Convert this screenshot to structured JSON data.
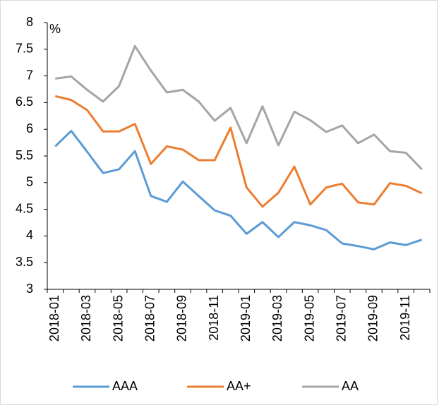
{
  "chart_data": {
    "type": "line",
    "y_label": "%",
    "categories": [
      "2018-01",
      null,
      "2018-03",
      null,
      "2018-05",
      null,
      "2018-07",
      null,
      "2018-09",
      null,
      "2018-11",
      null,
      "2019-01",
      null,
      "2019-03",
      null,
      "2019-05",
      null,
      "2019-07",
      null,
      "2019-09",
      null,
      "2019-11",
      null
    ],
    "series": [
      {
        "name": "AAA",
        "color": "#5b9bd5",
        "values": [
          5.68,
          5.97,
          5.58,
          5.18,
          5.25,
          5.59,
          4.75,
          4.64,
          5.02,
          4.75,
          4.48,
          4.38,
          4.04,
          4.26,
          3.98,
          4.26,
          4.2,
          4.11,
          3.86,
          3.81,
          3.75,
          3.88,
          3.83,
          3.93
        ]
      },
      {
        "name": "AA+",
        "color": "#ed7d31",
        "values": [
          6.62,
          6.55,
          6.36,
          5.96,
          5.96,
          6.1,
          5.35,
          5.68,
          5.62,
          5.42,
          5.42,
          6.03,
          4.91,
          4.55,
          4.81,
          5.3,
          4.59,
          4.91,
          4.98,
          4.63,
          4.59,
          4.99,
          4.94,
          4.8
        ]
      },
      {
        "name": "AA",
        "color": "#a5a5a5",
        "values": [
          6.95,
          6.99,
          6.74,
          6.52,
          6.81,
          7.56,
          7.1,
          6.69,
          6.74,
          6.52,
          6.16,
          6.4,
          5.74,
          6.43,
          5.7,
          6.33,
          6.17,
          5.95,
          6.07,
          5.74,
          5.9,
          5.59,
          5.56,
          5.25
        ]
      }
    ],
    "ylim": [
      3,
      8
    ],
    "yticks": [
      3,
      3.5,
      4,
      4.5,
      5,
      5.5,
      6,
      6.5,
      7,
      7.5,
      8
    ],
    "grid": false,
    "legend": "bottom"
  }
}
